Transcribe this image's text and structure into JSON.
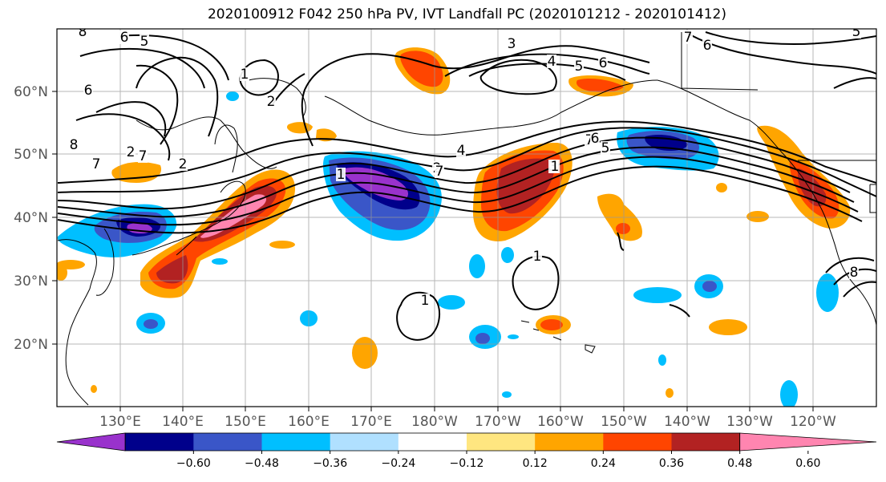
{
  "title": "2020100912 F042 250 hPa PV, IVT Landfall PC (2020101212 - 2020101412)",
  "chart_data": {
    "type": "heatmap",
    "title": "2020100912 F042 250 hPa PV, IVT Landfall PC (2020101212 - 2020101412)",
    "lon_ticks": [
      "130°E",
      "140°E",
      "150°E",
      "160°E",
      "170°E",
      "180°W",
      "170°W",
      "160°W",
      "150°W",
      "140°W",
      "130°W",
      "120°W"
    ],
    "lat_ticks": [
      "60°N",
      "50°N",
      "40°N",
      "30°N",
      "20°N"
    ],
    "colorbar": {
      "tick_labels": [
        "−0.60",
        "−0.48",
        "−0.36",
        "−0.24",
        "−0.12",
        "0.12",
        "0.24",
        "0.36",
        "0.48",
        "0.60"
      ],
      "colors": [
        "#9932cc",
        "#00008b",
        "#3a56c8",
        "#00bfff",
        "#b0e0ff",
        "#ffffff",
        "#ffe680",
        "#ffa500",
        "#ff4500",
        "#b22222",
        "#ff85b0"
      ]
    },
    "contour_labels": [
      "8",
      "6",
      "5",
      "6",
      "7",
      "1",
      "2",
      "3",
      "4",
      "5",
      "6",
      "7",
      "8",
      "2",
      "7",
      "2",
      "1",
      "2",
      "4",
      "3",
      "7",
      "6",
      "5",
      "1",
      "1",
      "1",
      "8",
      "7",
      "6",
      "5"
    ],
    "grid": true,
    "data_description": "Shaded anomaly blobs along a mid-latitude jet; black PV contours"
  }
}
